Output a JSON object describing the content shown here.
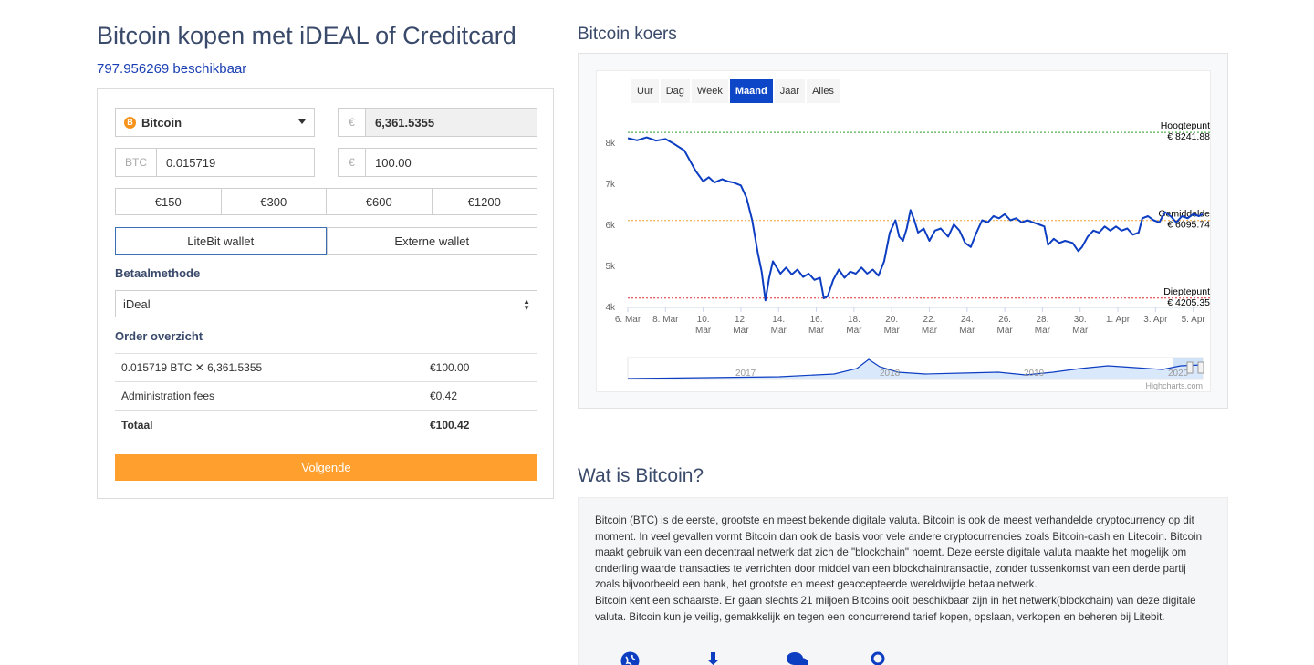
{
  "header": {
    "title": "Bitcoin kopen met iDEAL of Creditcard",
    "available": "797.956269 beschikbaar"
  },
  "form": {
    "coin": "Bitcoin",
    "coin_badge": "B",
    "currency_symbol": "€",
    "price": "6,361.5355",
    "btc_label": "BTC",
    "btc_amount": "0.015719",
    "eur_amount": "100.00",
    "quick_amounts": [
      "€150",
      "€300",
      "€600",
      "€1200"
    ],
    "wallets": [
      "LiteBit wallet",
      "Externe wallet"
    ],
    "payment_label": "Betaalmethode",
    "payment_method": "iDeal",
    "order_label": "Order overzicht",
    "order_rows": [
      {
        "desc": "0.015719 BTC ✕ 6,361.5355",
        "amount": "€100.00"
      },
      {
        "desc": "Administration fees",
        "amount": "€0.42"
      },
      {
        "desc": "Totaal",
        "amount": "€100.42"
      }
    ],
    "next_button": "Volgende"
  },
  "chart_section": {
    "heading": "Bitcoin koers",
    "range_buttons": [
      "Uur",
      "Dag",
      "Week",
      "Maand",
      "Jaar",
      "Alles"
    ],
    "selected_range": "Maand",
    "credit": "Highcharts.com",
    "colors": {
      "line": "#0d3ec2",
      "high": "#2a9d2a",
      "avg": "#f0a030",
      "low": "#e03030",
      "selected": "#0d47c7"
    }
  },
  "chart_data": {
    "type": "line",
    "ylim": [
      4000,
      8400
    ],
    "yticks": [
      {
        "v": 8000,
        "label": "8k"
      },
      {
        "v": 7000,
        "label": "7k"
      },
      {
        "v": 6000,
        "label": "6k"
      },
      {
        "v": 5000,
        "label": "5k"
      },
      {
        "v": 4000,
        "label": "4k"
      }
    ],
    "xlim": [
      0,
      30.5
    ],
    "xticks": [
      {
        "d": 0,
        "l1": "6. Mar",
        "l2": ""
      },
      {
        "d": 2,
        "l1": "8. Mar",
        "l2": ""
      },
      {
        "d": 4,
        "l1": "10.",
        "l2": "Mar"
      },
      {
        "d": 6,
        "l1": "12.",
        "l2": "Mar"
      },
      {
        "d": 8,
        "l1": "14.",
        "l2": "Mar"
      },
      {
        "d": 10,
        "l1": "16.",
        "l2": "Mar"
      },
      {
        "d": 12,
        "l1": "18.",
        "l2": "Mar"
      },
      {
        "d": 14,
        "l1": "20.",
        "l2": "Mar"
      },
      {
        "d": 16,
        "l1": "22.",
        "l2": "Mar"
      },
      {
        "d": 18,
        "l1": "24.",
        "l2": "Mar"
      },
      {
        "d": 20,
        "l1": "26.",
        "l2": "Mar"
      },
      {
        "d": 22,
        "l1": "28.",
        "l2": "Mar"
      },
      {
        "d": 24,
        "l1": "30.",
        "l2": "Mar"
      },
      {
        "d": 26,
        "l1": "1. Apr",
        "l2": ""
      },
      {
        "d": 28,
        "l1": "3. Apr",
        "l2": ""
      },
      {
        "d": 30,
        "l1": "5. Apr",
        "l2": ""
      }
    ],
    "series": [
      {
        "points": [
          [
            0,
            8100
          ],
          [
            0.5,
            8050
          ],
          [
            1,
            8120
          ],
          [
            1.5,
            8040
          ],
          [
            2,
            8080
          ],
          [
            2.5,
            7950
          ],
          [
            3,
            7800
          ],
          [
            3.3,
            7550
          ],
          [
            3.6,
            7300
          ],
          [
            4,
            7050
          ],
          [
            4.3,
            7150
          ],
          [
            4.6,
            7020
          ],
          [
            5,
            7100
          ],
          [
            5.3,
            7050
          ],
          [
            5.6,
            7020
          ],
          [
            6,
            6950
          ],
          [
            6.3,
            6650
          ],
          [
            6.6,
            6100
          ],
          [
            6.9,
            5300
          ],
          [
            7.1,
            4850
          ],
          [
            7.3,
            4150
          ],
          [
            7.5,
            4700
          ],
          [
            7.7,
            5100
          ],
          [
            7.9,
            4950
          ],
          [
            8.1,
            4800
          ],
          [
            8.4,
            4950
          ],
          [
            8.7,
            4780
          ],
          [
            9,
            4900
          ],
          [
            9.3,
            4720
          ],
          [
            9.6,
            4800
          ],
          [
            9.9,
            4650
          ],
          [
            10.2,
            4700
          ],
          [
            10.4,
            4200
          ],
          [
            10.6,
            4250
          ],
          [
            10.9,
            4650
          ],
          [
            11.2,
            4900
          ],
          [
            11.5,
            4700
          ],
          [
            11.8,
            4850
          ],
          [
            12.1,
            4800
          ],
          [
            12.4,
            4950
          ],
          [
            12.7,
            4800
          ],
          [
            13,
            4900
          ],
          [
            13.3,
            4750
          ],
          [
            13.6,
            5100
          ],
          [
            13.9,
            5800
          ],
          [
            14.2,
            6100
          ],
          [
            14.4,
            5700
          ],
          [
            14.6,
            5600
          ],
          [
            14.8,
            5900
          ],
          [
            15,
            6350
          ],
          [
            15.2,
            6100
          ],
          [
            15.4,
            5800
          ],
          [
            15.7,
            5900
          ],
          [
            16,
            5600
          ],
          [
            16.3,
            5850
          ],
          [
            16.6,
            5900
          ],
          [
            17,
            5700
          ],
          [
            17.3,
            6000
          ],
          [
            17.6,
            5850
          ],
          [
            17.9,
            5550
          ],
          [
            18.2,
            5450
          ],
          [
            18.5,
            5800
          ],
          [
            18.8,
            6100
          ],
          [
            19.1,
            6050
          ],
          [
            19.4,
            6200
          ],
          [
            19.7,
            6150
          ],
          [
            20,
            6250
          ],
          [
            20.3,
            6100
          ],
          [
            20.6,
            6150
          ],
          [
            20.9,
            6050
          ],
          [
            21.2,
            6100
          ],
          [
            21.5,
            6050
          ],
          [
            21.8,
            6000
          ],
          [
            22.1,
            5950
          ],
          [
            22.3,
            5500
          ],
          [
            22.6,
            5650
          ],
          [
            22.9,
            5550
          ],
          [
            23.2,
            5600
          ],
          [
            23.6,
            5550
          ],
          [
            23.9,
            5350
          ],
          [
            24.1,
            5450
          ],
          [
            24.4,
            5700
          ],
          [
            24.7,
            5850
          ],
          [
            25,
            5800
          ],
          [
            25.3,
            5950
          ],
          [
            25.6,
            5850
          ],
          [
            25.9,
            5950
          ],
          [
            26.2,
            5850
          ],
          [
            26.5,
            5900
          ],
          [
            26.8,
            5750
          ],
          [
            27.1,
            5800
          ],
          [
            27.3,
            6150
          ],
          [
            27.6,
            6200
          ],
          [
            27.9,
            6100
          ],
          [
            28.2,
            6050
          ],
          [
            28.5,
            6300
          ],
          [
            28.8,
            6200
          ],
          [
            29.1,
            6050
          ],
          [
            29.4,
            6200
          ],
          [
            29.7,
            6150
          ],
          [
            30,
            6250
          ],
          [
            30.3,
            6200
          ],
          [
            30.5,
            6250
          ]
        ]
      }
    ],
    "plot_lines": [
      {
        "name": "Hoogtepunt",
        "value": 8241.88,
        "label": "€ 8241.88",
        "color": "high"
      },
      {
        "name": "Gemiddelde",
        "value": 6095.74,
        "label": "€ 6095.74",
        "color": "avg"
      },
      {
        "name": "Dieptepunt",
        "value": 4205.35,
        "label": "€ 4205.35",
        "color": "low"
      }
    ],
    "navigator_labels": [
      "2017",
      "2018",
      "2019",
      "2020"
    ]
  },
  "info": {
    "heading": "Wat is Bitcoin?",
    "text": "Bitcoin (BTC) is de eerste, grootste en meest bekende digitale valuta. Bitcoin is ook de meest verhandelde cryptocurrency op dit moment. In veel gevallen vormt Bitcoin dan ook de basis voor vele andere cryptocurrencies zoals Bitcoin-cash en Litecoin. Bitcoin maakt gebruik van een decentraal netwerk dat zich de \"blockchain\" noemt. Deze eerste digitale valuta maakte het mogelijk om onderling waarde transacties te verrichten door middel van een blockchaintransactie, zonder tussenkomst van een derde partij zoals bijvoorbeeld een bank, het grootste en meest geaccepteerde wereldwijde betaalnetwerk.",
    "text2": "Bitcoin kent een schaarste. Er gaan slechts 21 miljoen Bitcoins ooit beschikbaar zijn in het netwerk(blockchain) van deze digitale valuta. Bitcoin kun je veilig, gemakkelijk en tegen een concurrerend tarief kopen, opslaan, verkopen en beheren bij Litebit.",
    "icons": [
      "globe-icon",
      "download-icon",
      "chat-icon",
      "search-icon"
    ]
  }
}
